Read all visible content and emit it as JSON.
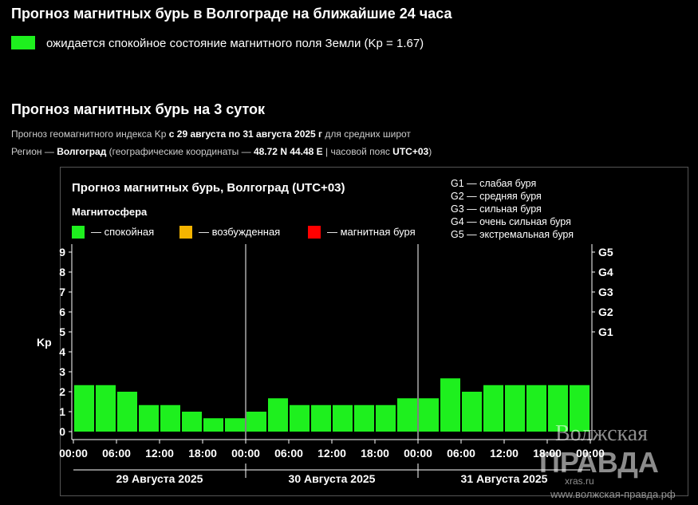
{
  "header": {
    "title": "Прогноз магнитных бурь в Волгограде на ближайшие 24 часа",
    "status": "ожидается спокойное состояние магнитного поля Земли (Kp = 1.67)",
    "status_color": "#1ef01e"
  },
  "section": {
    "title": "Прогноз магнитных бурь на 3 суток",
    "info_line_1": [
      "Прогноз геомагнитного индекса Kp ",
      "с 29 августа по 31 августа 2025 г",
      " для средних широт"
    ],
    "info_line_2": [
      "Регион — ",
      "Волгоград",
      " (географические координаты — ",
      "48.72 N 44.48 E",
      " | часовой пояс ",
      "UTC+03",
      ")"
    ]
  },
  "chart_data": {
    "type": "bar",
    "title": "Прогноз магнитных бурь, Волгоград (UTC+03)",
    "legend_title": "Магнитосфера",
    "legend": [
      {
        "label": "— спокойная",
        "color": "#1ef01e"
      },
      {
        "label": "— возбужденная",
        "color": "#f5b400"
      },
      {
        "label": "— магнитная буря",
        "color": "#ff0000"
      }
    ],
    "scale_legend": [
      "G1 — слабая буря",
      "G2 — средняя буря",
      "G3 — сильная буря",
      "G4 — очень сильная буря",
      "G5 — экстремальная буря"
    ],
    "ylabel": "Kp",
    "categories": [
      null,
      null,
      null,
      null,
      null,
      null,
      null,
      null,
      null,
      null,
      null,
      null,
      null,
      null,
      null,
      null,
      null,
      null,
      null,
      null,
      null,
      null,
      null,
      null
    ],
    "values": [
      2.33,
      2.33,
      2.0,
      1.33,
      1.33,
      1.0,
      0.67,
      0.67,
      1.0,
      1.67,
      1.33,
      1.33,
      1.33,
      1.33,
      1.33,
      1.67,
      1.67,
      2.67,
      2.0,
      2.33,
      2.33,
      2.33,
      2.33,
      2.33
    ],
    "color": "#1ef01e",
    "ylim": [
      -0.4,
      9.4
    ],
    "yticks": [
      0,
      1,
      2,
      3,
      4,
      5,
      6,
      7,
      8,
      9
    ],
    "y2lim": [
      -0.4,
      9.4
    ],
    "y2ticks": [
      {
        "value": 5,
        "label": "G1"
      },
      {
        "value": 6,
        "label": "G2"
      },
      {
        "value": 7,
        "label": "G3"
      },
      {
        "value": 8,
        "label": "G4"
      },
      {
        "value": 9,
        "label": "G5"
      }
    ],
    "xlim": [
      0,
      24
    ],
    "xticks": [
      {
        "value": 0,
        "label": "00:00"
      },
      {
        "value": 2,
        "label": "06:00"
      },
      {
        "value": 4,
        "label": "12:00"
      },
      {
        "value": 6,
        "label": "18:00"
      },
      {
        "value": 8,
        "label": "00:00"
      },
      {
        "value": 10,
        "label": "06:00"
      },
      {
        "value": 12,
        "label": "12:00"
      },
      {
        "value": 14,
        "label": "18:00"
      },
      {
        "value": 16,
        "label": "00:00"
      },
      {
        "value": 18,
        "label": "06:00"
      },
      {
        "value": 20,
        "label": "12:00"
      },
      {
        "value": 22,
        "label": "18:00"
      },
      {
        "value": 24,
        "label": "00:00"
      }
    ],
    "days": [
      "29 Августа 2025",
      "30 Августа 2025",
      "31 Августа 2025"
    ]
  },
  "watermark": {
    "name_1": "Волжская",
    "name_2": "ПРАВДА",
    "site_1": "xras.ru",
    "site_2": "www.волжская-правда.рф"
  }
}
